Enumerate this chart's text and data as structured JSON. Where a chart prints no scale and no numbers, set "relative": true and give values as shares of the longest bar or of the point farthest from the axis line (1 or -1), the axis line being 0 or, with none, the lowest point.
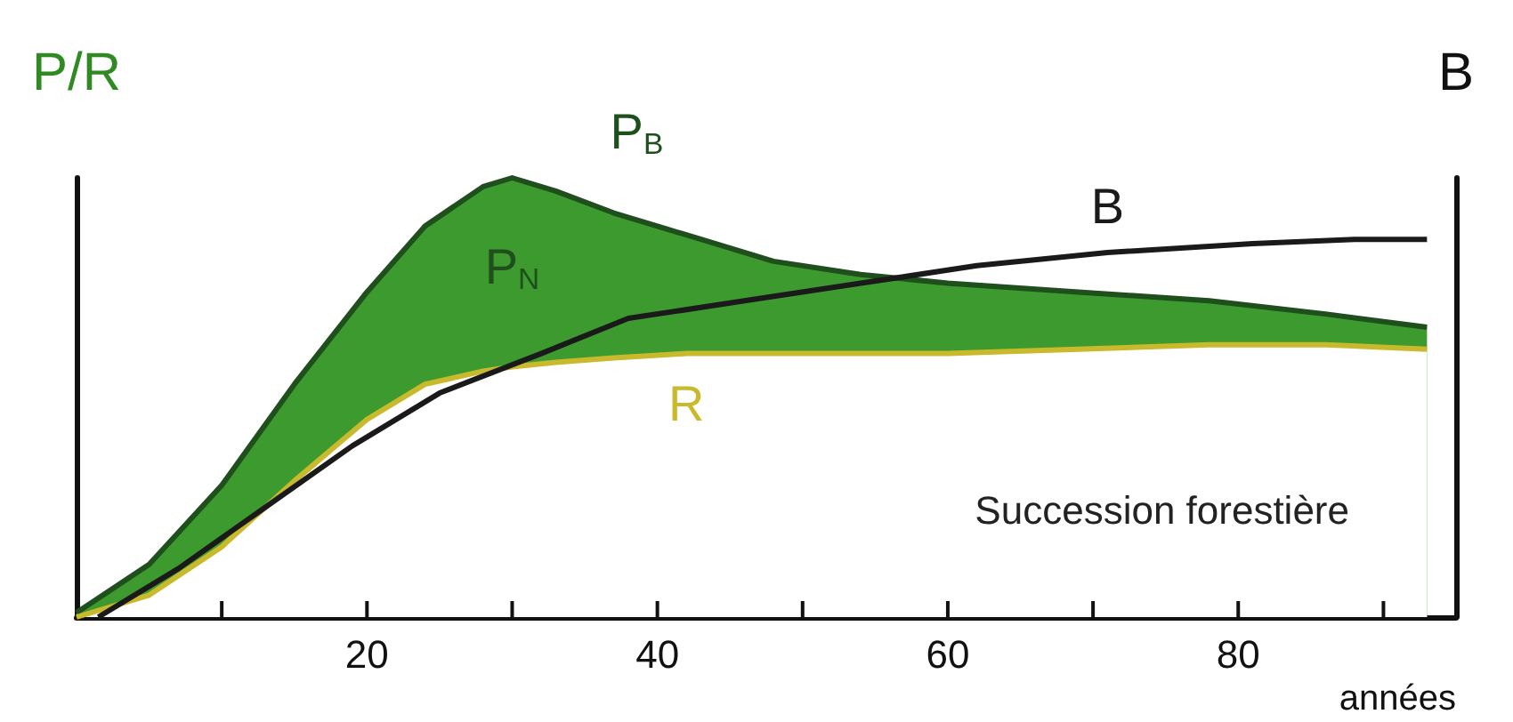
{
  "chart_data": {
    "type": "line",
    "relative": true,
    "legend": false,
    "grid": false,
    "xlabel": "années",
    "ylabel": "P/R",
    "y2label": "B",
    "xlim": [
      0,
      95
    ],
    "xticks": [
      {
        "value": 10,
        "label": null
      },
      20,
      {
        "value": 30,
        "label": null
      },
      40,
      {
        "value": 50,
        "label": null
      },
      60,
      {
        "value": 70,
        "label": null
      },
      80,
      {
        "value": 90,
        "label": null
      }
    ],
    "annotations": [
      "Succession forestière",
      "P$_{N}$"
    ],
    "series": [
      {
        "name": "P$_{B}$",
        "type": "area",
        "color": "#3d9a2e",
        "x": [
          0,
          5,
          10,
          15,
          20,
          24,
          28,
          30,
          33,
          37,
          42,
          48,
          54,
          60,
          69,
          78,
          86,
          93
        ],
        "values": [
          0.01,
          0.12,
          0.3,
          0.53,
          0.74,
          0.89,
          0.98,
          1.0,
          0.97,
          0.92,
          0.87,
          0.81,
          0.78,
          0.76,
          0.74,
          0.72,
          0.69,
          0.66
        ]
      },
      {
        "name": "R",
        "color": "#c9b92c",
        "x": [
          0,
          5,
          10,
          15,
          20,
          24,
          28,
          30,
          33,
          37,
          42,
          48,
          54,
          60,
          69,
          78,
          86,
          93
        ],
        "values": [
          0,
          0.05,
          0.16,
          0.31,
          0.45,
          0.53,
          0.56,
          0.57,
          0.58,
          0.59,
          0.6,
          0.6,
          0.6,
          0.6,
          0.61,
          0.62,
          0.62,
          0.61
        ]
      },
      {
        "name": "B",
        "color": "#1a1a1a",
        "x": [
          1.5,
          7,
          13,
          19,
          25,
          32,
          38,
          46,
          54,
          62,
          71,
          81,
          88,
          93
        ],
        "values": [
          0,
          0.11,
          0.25,
          0.39,
          0.51,
          0.6,
          0.68,
          0.72,
          0.76,
          0.8,
          0.83,
          0.85,
          0.86,
          0.86
        ]
      }
    ]
  }
}
